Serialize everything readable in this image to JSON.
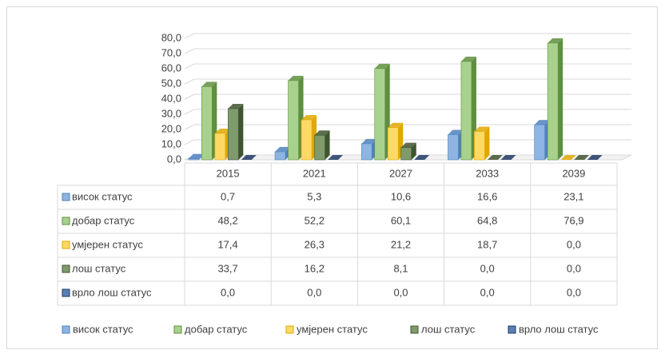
{
  "chart_data": {
    "type": "bar3d",
    "categories": [
      "2015",
      "2021",
      "2027",
      "2033",
      "2039"
    ],
    "series": [
      {
        "name": "висок статус",
        "color": "#8db4e2",
        "side": "#4f81bd",
        "values": [
          0.7,
          5.3,
          10.6,
          16.6,
          23.1
        ],
        "value_labels": [
          "0,7",
          "5,3",
          "10,6",
          "16,6",
          "23,1"
        ]
      },
      {
        "name": "добар статус",
        "color": "#a9d18e",
        "side": "#5e8f3e",
        "values": [
          48.2,
          52.2,
          60.1,
          64.8,
          76.9
        ],
        "value_labels": [
          "48,2",
          "52,2",
          "60,1",
          "64,8",
          "76,9"
        ]
      },
      {
        "name": "умјерен статус",
        "color": "#ffd966",
        "side": "#e0a800",
        "values": [
          17.4,
          26.3,
          21.2,
          18.7,
          0.0
        ],
        "value_labels": [
          "17,4",
          "26,3",
          "21,2",
          "18,7",
          "0,0"
        ]
      },
      {
        "name": "лош статус",
        "color": "#7f9a6c",
        "side": "#3f5530",
        "values": [
          33.7,
          16.2,
          8.1,
          0.0,
          0.0
        ],
        "value_labels": [
          "33,7",
          "16,2",
          "8,1",
          "0,0",
          "0,0"
        ]
      },
      {
        "name": "врло лош статус",
        "color": "#5b7fb5",
        "side": "#1f3864",
        "values": [
          0.0,
          0.0,
          0.0,
          0.0,
          0.0
        ],
        "value_labels": [
          "0,0",
          "0,0",
          "0,0",
          "0,0",
          "0,0"
        ]
      }
    ],
    "ylim": [
      0,
      80
    ],
    "yticks": [
      {
        "value": 0,
        "label": "0,0"
      },
      {
        "value": 10,
        "label": "10,0"
      },
      {
        "value": 20,
        "label": "20,0"
      },
      {
        "value": 30,
        "label": "30,0"
      },
      {
        "value": 40,
        "label": "40,0"
      },
      {
        "value": 50,
        "label": "50,0"
      },
      {
        "value": 60,
        "label": "60,0"
      },
      {
        "value": 70,
        "label": "70,0"
      },
      {
        "value": 80,
        "label": "80,0"
      }
    ],
    "grid": true,
    "legend": "bottom"
  }
}
